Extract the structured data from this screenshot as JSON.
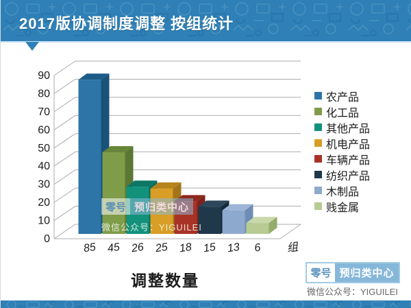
{
  "header": {
    "title": "2017版协调制度调整 按组统计"
  },
  "chart_data": {
    "type": "bar",
    "projection": "3d",
    "title": "调整数量",
    "categories": [
      "85",
      "45",
      "26",
      "25",
      "18",
      "15",
      "13",
      "6"
    ],
    "series": [
      {
        "name": "农产品",
        "value": 85,
        "color": "#2D74A7",
        "top": "#1D5C88",
        "side": "#1A527A"
      },
      {
        "name": "化工品",
        "value": 45,
        "color": "#7F9C49",
        "top": "#68853A",
        "side": "#5C7634"
      },
      {
        "name": "其他产品",
        "value": 26,
        "color": "#12917B",
        "top": "#0C7765",
        "side": "#0A6B5A"
      },
      {
        "name": "机电产品",
        "value": 25,
        "color": "#D89E26",
        "top": "#B6831D",
        "side": "#A2751A"
      },
      {
        "name": "车辆产品",
        "value": 18,
        "color": "#A93226",
        "top": "#8D281E",
        "side": "#7E231B"
      },
      {
        "name": "纺织产品",
        "value": 15,
        "color": "#20394A",
        "top": "#2B4759",
        "side": "#152A39"
      },
      {
        "name": "木制品",
        "value": 13,
        "color": "#8EA9CE",
        "top": "#9DB5D6",
        "side": "#6F8DB4"
      },
      {
        "name": "贱金属",
        "value": 6,
        "color": "#B7CB92",
        "top": "#C9D9AB",
        "side": "#94AC6C"
      }
    ],
    "x_axis_end_label": "组",
    "y_ticks": [
      0,
      10,
      20,
      30,
      40,
      50,
      60,
      70,
      80,
      90
    ],
    "ylim": [
      0,
      90
    ],
    "grid": true,
    "legend_position": "right",
    "grid_color": "#ABABAB",
    "tick_label_color": "#1a1a1a"
  },
  "watermark": {
    "brand_left": "零号",
    "brand_right": "预归类中心",
    "wechat": "微信公众号：YIGUILEI"
  },
  "footer": {
    "brand_left": "零号",
    "brand_right": "预归类中心",
    "wechat": "微信公众号：YIGUILEI"
  },
  "colors": {
    "header_bg": "#2E80B6",
    "header_edge": "#C6E0F0",
    "badge_border": "#A3CAE3",
    "badge_fill": "#85B7D9"
  }
}
